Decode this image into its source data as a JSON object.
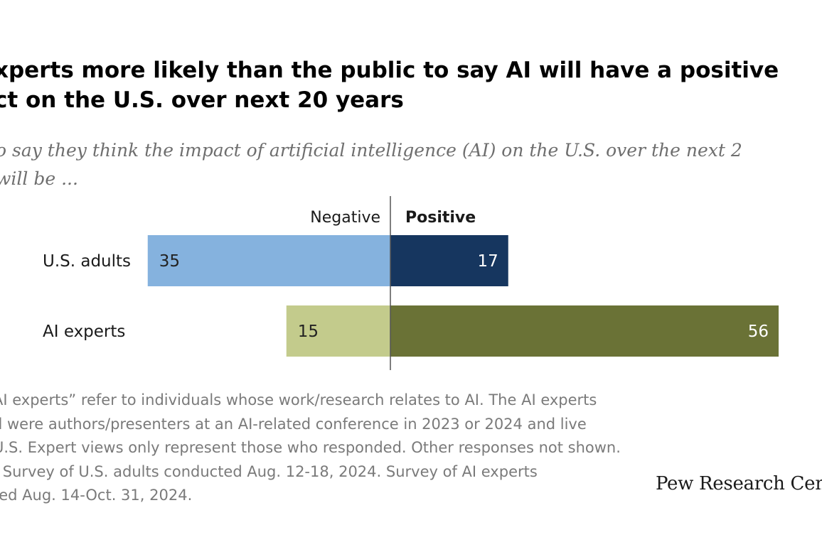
{
  "title_lines": [
    "xperts more likely than the public to say AI will have a positive",
    "ct on the U.S. over next 20 years"
  ],
  "subtitle_lines": [
    "o say they think the impact of artificial intelligence (AI) on the U.S. over the next 2",
    "will be ..."
  ],
  "notes_lines": [
    "AI experts” refer to individuals whose work/research relates to AI. The AI experts",
    "d were authors/presenters at an AI-related conference in 2023 or 2024 and live",
    "U.S. Expert views only represent those who responded. Other responses not shown.",
    ": Survey of U.S. adults conducted Aug. 12-18, 2024. Survey of AI experts",
    "ted Aug. 14-Oct. 31, 2024."
  ],
  "logo": "Pew Research Center",
  "chart_data": {
    "type": "bar",
    "orientation": "horizontal-diverging",
    "categories": [
      "U.S. adults",
      "AI experts"
    ],
    "series": [
      {
        "name": "Negative",
        "values": [
          35,
          15
        ],
        "colors": [
          "#85b2de",
          "#c3cb8c"
        ],
        "label_colors": [
          "#222222",
          "#222222"
        ]
      },
      {
        "name": "Positive",
        "values": [
          17,
          56
        ],
        "colors": [
          "#16365f",
          "#6a7236"
        ],
        "label_colors": [
          "#ffffff",
          "#ffffff"
        ]
      }
    ],
    "grid": false,
    "legend": "top-center"
  }
}
